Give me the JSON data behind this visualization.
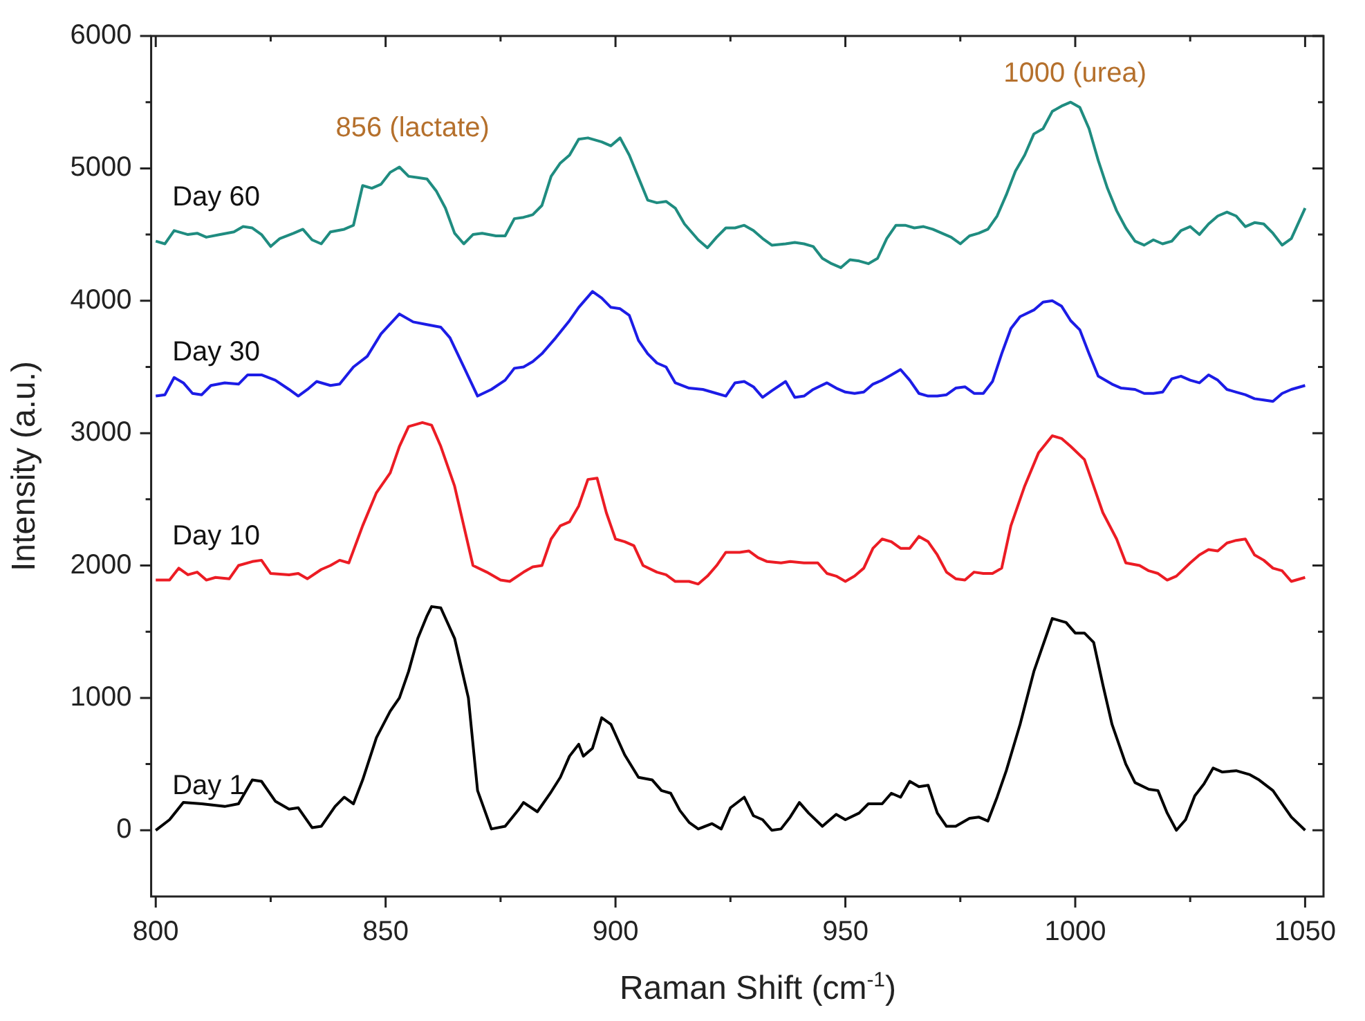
{
  "chart_data": {
    "type": "line",
    "xlabel": "Raman Shift (cm$^{-1}$)",
    "ylabel": "Intensity (a.u.)",
    "xlim": [
      799,
      1054
    ],
    "xticks": [
      800,
      850,
      900,
      950,
      1000,
      1050
    ],
    "ylim": [
      -500,
      6000
    ],
    "yticks": [
      0,
      1000,
      2000,
      3000,
      4000,
      5000,
      6000
    ],
    "grid": false,
    "legend": false,
    "marker": "none",
    "line_style": "solid",
    "annotations": [
      "856 (lactate)",
      "1000 (urea)"
    ],
    "series": [
      {
        "name": "Day 1",
        "color": "#000000",
        "x": [
          800,
          803,
          806,
          810,
          815,
          818,
          821,
          823,
          826,
          829,
          831,
          834,
          836,
          839,
          841,
          843,
          845,
          848,
          851,
          853,
          855,
          857,
          859,
          860,
          862,
          865,
          868,
          870,
          873,
          876,
          879,
          880,
          883,
          886,
          888,
          890,
          892,
          893,
          895,
          897,
          899,
          902,
          905,
          908,
          910,
          912,
          914,
          916,
          918,
          921,
          923,
          925,
          928,
          930,
          932,
          934,
          936,
          938,
          940,
          942,
          945,
          948,
          950,
          953,
          955,
          958,
          960,
          962,
          964,
          966,
          968,
          970,
          972,
          974,
          977,
          979,
          981,
          983,
          985,
          988,
          991,
          994,
          995,
          998,
          1000,
          1002,
          1004,
          1006,
          1008,
          1011,
          1013,
          1016,
          1018,
          1020,
          1022,
          1024,
          1026,
          1028,
          1030,
          1032,
          1035,
          1038,
          1040,
          1043,
          1045,
          1047,
          1050
        ],
        "values": [
          0,
          80,
          210,
          200,
          180,
          200,
          380,
          370,
          220,
          160,
          170,
          20,
          30,
          180,
          250,
          200,
          380,
          700,
          900,
          1000,
          1200,
          1450,
          1620,
          1690,
          1680,
          1450,
          1000,
          300,
          10,
          30,
          160,
          210,
          140,
          290,
          400,
          560,
          650,
          560,
          620,
          850,
          800,
          570,
          400,
          380,
          300,
          280,
          150,
          60,
          10,
          50,
          10,
          170,
          250,
          110,
          80,
          0,
          10,
          100,
          210,
          130,
          30,
          120,
          80,
          130,
          200,
          200,
          280,
          250,
          370,
          330,
          340,
          130,
          30,
          30,
          90,
          100,
          70,
          250,
          450,
          800,
          1200,
          1500,
          1600,
          1570,
          1490,
          1490,
          1420,
          1100,
          800,
          500,
          360,
          310,
          300,
          130,
          0,
          80,
          260,
          350,
          470,
          440,
          450,
          420,
          380,
          300,
          200,
          100,
          0
        ]
      },
      {
        "name": "Day 10",
        "color": "#ec1c24",
        "x": [
          800,
          803,
          805,
          807,
          809,
          811,
          813,
          816,
          818,
          821,
          823,
          825,
          829,
          831,
          833,
          836,
          838,
          840,
          842,
          845,
          848,
          851,
          853,
          855,
          858,
          860,
          862,
          865,
          867,
          869,
          872,
          875,
          877,
          880,
          882,
          884,
          886,
          888,
          890,
          892,
          894,
          896,
          898,
          900,
          902,
          904,
          906,
          909,
          911,
          913,
          916,
          918,
          920,
          922,
          924,
          927,
          929,
          931,
          933,
          936,
          938,
          941,
          944,
          946,
          948,
          950,
          952,
          954,
          956,
          958,
          960,
          962,
          964,
          966,
          968,
          970,
          972,
          974,
          976,
          978,
          980,
          982,
          984,
          986,
          989,
          992,
          995,
          997,
          999,
          1002,
          1004,
          1006,
          1009,
          1011,
          1014,
          1016,
          1018,
          1020,
          1022,
          1025,
          1027,
          1029,
          1031,
          1033,
          1035,
          1037,
          1039,
          1041,
          1043,
          1045,
          1047,
          1050
        ],
        "values": [
          1890,
          1890,
          1980,
          1930,
          1950,
          1890,
          1910,
          1900,
          2000,
          2030,
          2040,
          1940,
          1930,
          1940,
          1900,
          1970,
          2000,
          2040,
          2020,
          2300,
          2550,
          2700,
          2900,
          3050,
          3080,
          3060,
          2900,
          2600,
          2300,
          2000,
          1950,
          1890,
          1880,
          1950,
          1990,
          2000,
          2200,
          2300,
          2330,
          2450,
          2650,
          2660,
          2400,
          2200,
          2180,
          2150,
          2000,
          1950,
          1930,
          1880,
          1880,
          1860,
          1920,
          2000,
          2100,
          2100,
          2110,
          2060,
          2030,
          2020,
          2030,
          2020,
          2020,
          1940,
          1920,
          1880,
          1920,
          1980,
          2130,
          2200,
          2180,
          2130,
          2130,
          2220,
          2180,
          2080,
          1950,
          1900,
          1890,
          1950,
          1940,
          1940,
          1980,
          2300,
          2600,
          2850,
          2980,
          2960,
          2900,
          2800,
          2600,
          2400,
          2200,
          2020,
          2000,
          1960,
          1940,
          1890,
          1920,
          2020,
          2080,
          2120,
          2110,
          2170,
          2190,
          2200,
          2080,
          2040,
          1980,
          1960,
          1880,
          1910
        ]
      },
      {
        "name": "Day 30",
        "color": "#1c1ce6",
        "x": [
          800,
          802,
          804,
          806,
          808,
          810,
          812,
          815,
          818,
          820,
          823,
          826,
          829,
          831,
          833,
          835,
          838,
          840,
          843,
          846,
          849,
          853,
          856,
          859,
          862,
          864,
          867,
          870,
          873,
          876,
          878,
          880,
          882,
          884,
          887,
          890,
          892,
          895,
          897,
          899,
          901,
          903,
          905,
          907,
          909,
          911,
          913,
          916,
          919,
          922,
          924,
          926,
          928,
          930,
          932,
          934,
          937,
          939,
          941,
          943,
          946,
          948,
          950,
          952,
          954,
          956,
          958,
          960,
          962,
          964,
          966,
          968,
          970,
          972,
          974,
          976,
          978,
          980,
          982,
          984,
          986,
          988,
          991,
          993,
          995,
          997,
          999,
          1001,
          1003,
          1005,
          1008,
          1010,
          1013,
          1015,
          1017,
          1019,
          1021,
          1023,
          1025,
          1027,
          1029,
          1031,
          1033,
          1035,
          1037,
          1039,
          1041,
          1043,
          1045,
          1047,
          1050
        ],
        "values": [
          3280,
          3290,
          3420,
          3380,
          3300,
          3290,
          3360,
          3380,
          3370,
          3440,
          3440,
          3400,
          3330,
          3280,
          3330,
          3390,
          3360,
          3370,
          3500,
          3580,
          3750,
          3900,
          3840,
          3820,
          3800,
          3720,
          3500,
          3280,
          3330,
          3400,
          3490,
          3500,
          3540,
          3600,
          3720,
          3850,
          3950,
          4070,
          4020,
          3950,
          3940,
          3890,
          3700,
          3600,
          3530,
          3500,
          3380,
          3340,
          3330,
          3300,
          3280,
          3380,
          3390,
          3350,
          3270,
          3320,
          3390,
          3270,
          3280,
          3330,
          3380,
          3340,
          3310,
          3300,
          3310,
          3370,
          3400,
          3440,
          3480,
          3400,
          3300,
          3280,
          3280,
          3290,
          3340,
          3350,
          3300,
          3300,
          3390,
          3600,
          3790,
          3880,
          3930,
          3990,
          4000,
          3960,
          3850,
          3780,
          3600,
          3430,
          3370,
          3340,
          3330,
          3300,
          3300,
          3310,
          3410,
          3430,
          3400,
          3380,
          3440,
          3400,
          3330,
          3310,
          3290,
          3260,
          3250,
          3240,
          3300,
          3330,
          3360
        ]
      },
      {
        "name": "Day 60",
        "color": "#1f8c80",
        "x": [
          800,
          802,
          804,
          807,
          809,
          811,
          814,
          817,
          819,
          821,
          823,
          825,
          827,
          830,
          832,
          834,
          836,
          838,
          841,
          843,
          845,
          847,
          849,
          851,
          853,
          855,
          857,
          859,
          861,
          863,
          865,
          867,
          869,
          871,
          874,
          876,
          878,
          880,
          882,
          884,
          886,
          888,
          890,
          892,
          894,
          897,
          899,
          901,
          903,
          905,
          907,
          909,
          911,
          913,
          915,
          918,
          920,
          922,
          924,
          926,
          928,
          930,
          932,
          934,
          937,
          939,
          941,
          943,
          945,
          947,
          949,
          951,
          953,
          955,
          957,
          959,
          961,
          963,
          965,
          967,
          969,
          971,
          973,
          975,
          977,
          979,
          981,
          983,
          985,
          987,
          989,
          991,
          993,
          995,
          997,
          999,
          1001,
          1003,
          1005,
          1007,
          1009,
          1011,
          1013,
          1015,
          1017,
          1019,
          1021,
          1023,
          1025,
          1027,
          1029,
          1031,
          1033,
          1035,
          1037,
          1039,
          1041,
          1043,
          1045,
          1047,
          1050
        ],
        "values": [
          4450,
          4430,
          4530,
          4500,
          4510,
          4480,
          4500,
          4520,
          4560,
          4550,
          4500,
          4410,
          4470,
          4510,
          4540,
          4460,
          4430,
          4520,
          4540,
          4570,
          4870,
          4850,
          4880,
          4970,
          5010,
          4940,
          4930,
          4920,
          4830,
          4700,
          4510,
          4430,
          4500,
          4510,
          4490,
          4490,
          4620,
          4630,
          4650,
          4720,
          4940,
          5040,
          5100,
          5220,
          5230,
          5200,
          5170,
          5230,
          5100,
          4930,
          4760,
          4740,
          4750,
          4700,
          4580,
          4460,
          4400,
          4480,
          4550,
          4550,
          4570,
          4530,
          4470,
          4420,
          4430,
          4440,
          4430,
          4410,
          4320,
          4280,
          4250,
          4310,
          4300,
          4280,
          4320,
          4470,
          4570,
          4570,
          4550,
          4560,
          4540,
          4510,
          4480,
          4430,
          4490,
          4510,
          4540,
          4640,
          4800,
          4980,
          5100,
          5260,
          5300,
          5430,
          5470,
          5500,
          5460,
          5300,
          5060,
          4850,
          4680,
          4550,
          4450,
          4420,
          4460,
          4430,
          4450,
          4530,
          4560,
          4500,
          4580,
          4640,
          4670,
          4640,
          4560,
          4590,
          4580,
          4510,
          4420,
          4470,
          4700
        ]
      }
    ]
  }
}
